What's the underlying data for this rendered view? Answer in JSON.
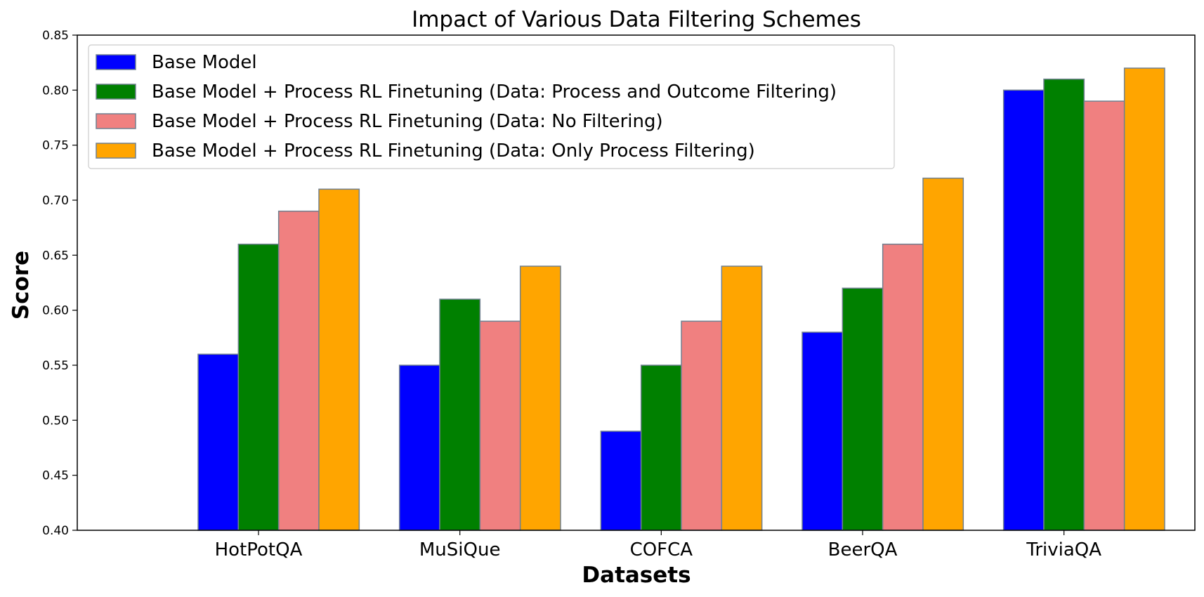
{
  "chart_data": {
    "type": "bar",
    "title": "Impact of Various Data Filtering Schemes",
    "xlabel": "Datasets",
    "ylabel": "Score",
    "ylim": [
      0.4,
      0.85
    ],
    "yticks": [
      "0.40",
      "0.45",
      "0.50",
      "0.55",
      "0.60",
      "0.65",
      "0.70",
      "0.75",
      "0.80",
      "0.85"
    ],
    "categories": [
      "HotPotQA",
      "MuSiQue",
      "COFCA",
      "BeerQA",
      "TriviaQA"
    ],
    "series": [
      {
        "name": "Base Model",
        "color": "#0000ff",
        "values": [
          0.56,
          0.55,
          0.49,
          0.58,
          0.8
        ]
      },
      {
        "name": "Base Model + Process RL Finetuning (Data: Process and Outcome Filtering)",
        "color": "#008000",
        "values": [
          0.66,
          0.61,
          0.55,
          0.62,
          0.81
        ]
      },
      {
        "name": "Base Model + Process RL Finetuning (Data: No Filtering)",
        "color": "#f08080",
        "values": [
          0.69,
          0.59,
          0.59,
          0.66,
          0.79
        ]
      },
      {
        "name": "Base Model + Process RL Finetuning (Data: Only Process Filtering)",
        "color": "#ffa500",
        "values": [
          0.71,
          0.64,
          0.64,
          0.72,
          0.82
        ]
      }
    ],
    "bar_edge_color": "#708090",
    "grid": false,
    "legend_position": "upper-left"
  }
}
